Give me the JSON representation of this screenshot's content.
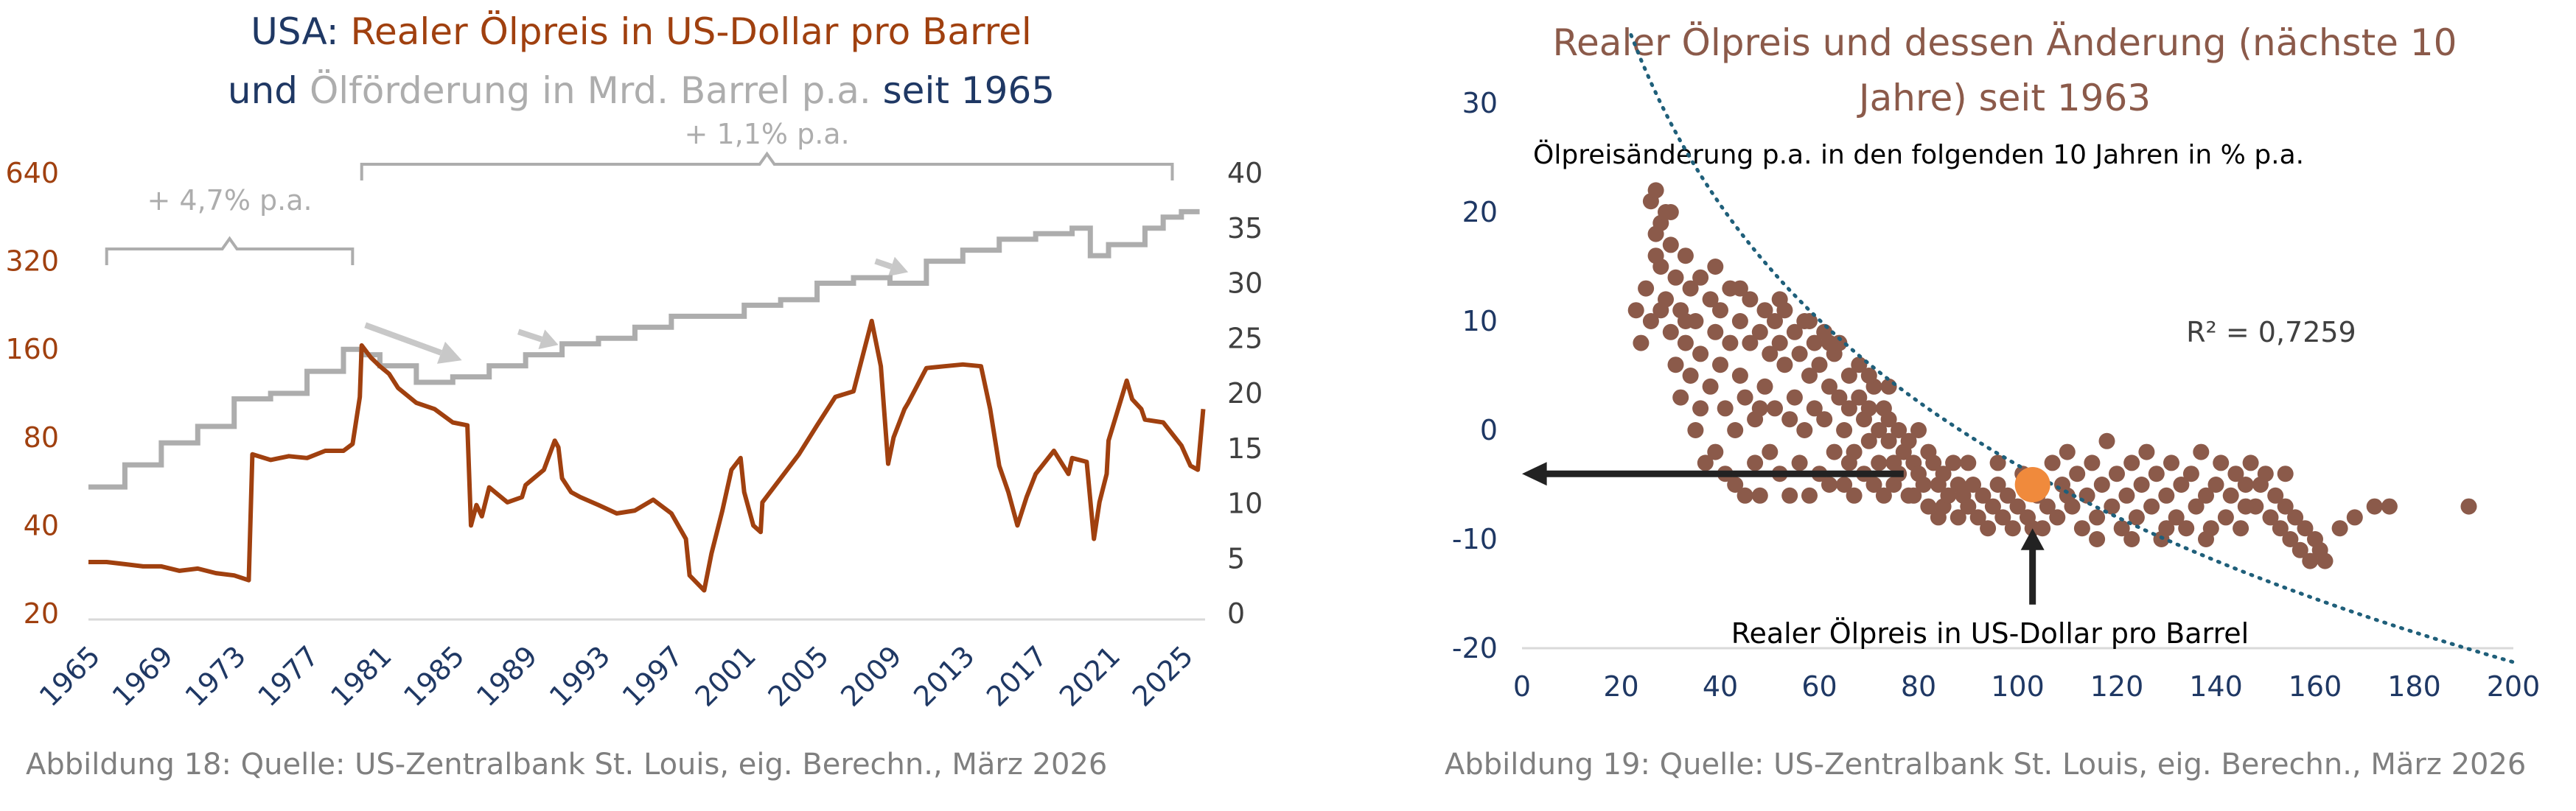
{
  "colors": {
    "navy": "#1f3864",
    "rust": "#a0400f",
    "gray": "#adadad",
    "axis_text": "#1f3864",
    "scatter": "#8b5a4a",
    "highlight": "#f08a3c",
    "trend": "#1f5f7a",
    "arrow": "#222222",
    "caption": "#7f7f7f"
  },
  "left": {
    "title_line1_part1": "USA: ",
    "title_line1_part2": "Realer Ölpreis in US-Dollar pro Barrel",
    "title_line2_part1": "und ",
    "title_line2_part2": "Ölförderung in Mrd. Barrel p.a.",
    "title_line2_part3": " seit 1965",
    "caption": "Abbildung 18: Quelle: US-Zentralbank St. Louis, eig. Berechn., März 2026"
  },
  "right": {
    "caption": "Abbildung 19: Quelle: US-Zentralbank St. Louis, eig. Berechn., März 2026"
  },
  "chart_data": [
    {
      "type": "line",
      "title": "USA: Realer Ölpreis in US-Dollar pro Barrel und Ölförderung in Mrd. Barrel p.a. seit 1965",
      "x_ticks": [
        "1965",
        "1969",
        "1973",
        "1977",
        "1981",
        "1985",
        "1989",
        "1993",
        "1997",
        "2001",
        "2005",
        "2009",
        "2013",
        "2017",
        "2021",
        "2025"
      ],
      "xlim": [
        1965,
        2026.3
      ],
      "y_left": {
        "scale": "log2",
        "ticks": [
          "20",
          "40",
          "80",
          "160",
          "320",
          "640"
        ],
        "range": [
          20,
          640
        ]
      },
      "y_right": {
        "scale": "linear",
        "ticks": [
          "0",
          "5",
          "10",
          "15",
          "20",
          "25",
          "30",
          "35",
          "40"
        ],
        "range": [
          0,
          40
        ]
      },
      "annotations": [
        {
          "text": "+ 4,7% p.a.",
          "from": 1966,
          "to": 1979.5
        },
        {
          "text": "+ 1,1% p.a.",
          "from": 1980,
          "to": 2024.5
        }
      ],
      "series": [
        {
          "name": "Realer Ölpreis in US-Dollar pro Barrel",
          "axis": "left",
          "x": [
            1965,
            1966,
            1967,
            1968,
            1969,
            1970,
            1971,
            1972,
            1973.0,
            1973.8,
            1974.0,
            1975,
            1976,
            1977,
            1978,
            1979.0,
            1979.5,
            1979.9,
            1980.0,
            1980.5,
            1981,
            1981.5,
            1982,
            1983,
            1984,
            1985,
            1985.8,
            1986.0,
            1986.3,
            1986.6,
            1987,
            1988,
            1988.8,
            1989,
            1990,
            1990.6,
            1990.8,
            1991,
            1991.5,
            1992,
            1993,
            1994,
            1995,
            1996,
            1997,
            1997.8,
            1998,
            1998.8,
            1999.2,
            1999.8,
            2000.3,
            2000.8,
            2001,
            2001.5,
            2001.9,
            2002,
            2003,
            2004,
            2005,
            2006,
            2007,
            2008.0,
            2008.5,
            2008.9,
            2009.2,
            2009.8,
            2010,
            2011,
            2012,
            2013,
            2014.0,
            2014.5,
            2015.0,
            2015.5,
            2016.0,
            2016.5,
            2017,
            2018,
            2018.8,
            2019,
            2019.8,
            2020.2,
            2020.5,
            2020.9,
            2021,
            2022.0,
            2022.3,
            2022.8,
            2023,
            2024,
            2025.0,
            2025.5,
            2025.9,
            2026.2
          ],
          "values": [
            30,
            30,
            29.5,
            29,
            29,
            28,
            28.5,
            27.5,
            27,
            26,
            70,
            67,
            69,
            68,
            72,
            72,
            76,
            110,
            165,
            150,
            140,
            132,
            118,
            105,
            100,
            90,
            88,
            40,
            47,
            43,
            54,
            48,
            50,
            55,
            62,
            78,
            74,
            58,
            52,
            50,
            47,
            44,
            45,
            49,
            44,
            36,
            27,
            24,
            32,
            45,
            62,
            68,
            52,
            40,
            38,
            48,
            58,
            70,
            88,
            110,
            115,
            200,
            140,
            65,
            80,
            100,
            105,
            138,
            140,
            142,
            140,
            100,
            64,
            52,
            40,
            50,
            60,
            72,
            60,
            68,
            66,
            36,
            48,
            60,
            78,
            125,
            108,
            100,
            92,
            90,
            75,
            64,
            62,
            100
          ]
        },
        {
          "name": "Ölförderung in Mrd. Barrel p.a.",
          "axis": "right",
          "x": [
            1965,
            1967,
            1969,
            1971,
            1973,
            1975,
            1977,
            1979,
            1980,
            1981,
            1983,
            1985,
            1987,
            1989,
            1991,
            1993,
            1995,
            1997,
            1999,
            2001,
            2003,
            2005,
            2007,
            2009,
            2011,
            2013,
            2015,
            2017,
            2019,
            2020,
            2021,
            2023,
            2024,
            2025,
            2026
          ],
          "values": [
            11.5,
            13.5,
            15.5,
            17.0,
            19.5,
            20.0,
            22.0,
            24.0,
            23.5,
            22.5,
            21.0,
            21.5,
            22.5,
            23.5,
            24.5,
            25.0,
            26.0,
            27.0,
            27.0,
            28.0,
            28.5,
            30.0,
            30.5,
            30.0,
            32.0,
            33.0,
            34.0,
            34.5,
            35.0,
            32.5,
            33.5,
            35.0,
            36.0,
            36.5,
            36.5
          ]
        }
      ]
    },
    {
      "type": "scatter",
      "title": "Realer Ölpreis und dessen Änderung (nächste 10 Jahre) seit 1963",
      "title_line1": "Realer Ölpreis und dessen Änderung (nächste 10",
      "title_line2": "Jahre) seit 1963",
      "xlabel": "Realer Ölpreis in US-Dollar pro Barrel",
      "ylabel": "Ölpreisänderung p.a. in den folgenden 10 Jahren in % p.a.",
      "xlim": [
        0,
        200
      ],
      "ylim": [
        -20,
        30
      ],
      "x_ticks": [
        "0",
        "20",
        "40",
        "60",
        "80",
        "100",
        "120",
        "140",
        "160",
        "180",
        "200"
      ],
      "y_ticks": [
        "-20",
        "-10",
        "0",
        "10",
        "20",
        "30"
      ],
      "r_squared_label": "R² = 0,7259",
      "trendline": {
        "type": "log",
        "a": 8.13,
        "b": -34.0
      },
      "highlight_point": {
        "x": 103,
        "y": -5
      },
      "points": [
        [
          23,
          11
        ],
        [
          24,
          8
        ],
        [
          25,
          13
        ],
        [
          26,
          10
        ],
        [
          26,
          21
        ],
        [
          27,
          22
        ],
        [
          27,
          18
        ],
        [
          28,
          15
        ],
        [
          28,
          19
        ],
        [
          29,
          20
        ],
        [
          29,
          12
        ],
        [
          30,
          17
        ],
        [
          30,
          9
        ],
        [
          31,
          14
        ],
        [
          31,
          6
        ],
        [
          32,
          11
        ],
        [
          32,
          3
        ],
        [
          33,
          16
        ],
        [
          33,
          8
        ],
        [
          34,
          13
        ],
        [
          34,
          5
        ],
        [
          35,
          10
        ],
        [
          35,
          0
        ],
        [
          36,
          14
        ],
        [
          36,
          7
        ],
        [
          37,
          -3
        ],
        [
          38,
          12
        ],
        [
          38,
          4
        ],
        [
          39,
          9
        ],
        [
          39,
          -2
        ],
        [
          40,
          11
        ],
        [
          40,
          6
        ],
        [
          41,
          2
        ],
        [
          41,
          -4
        ],
        [
          42,
          13
        ],
        [
          42,
          8
        ],
        [
          43,
          0
        ],
        [
          43,
          -5
        ],
        [
          44,
          10
        ],
        [
          44,
          5
        ],
        [
          45,
          3
        ],
        [
          45,
          -6
        ],
        [
          46,
          12
        ],
        [
          46,
          8
        ],
        [
          47,
          1
        ],
        [
          47,
          -3
        ],
        [
          48,
          9
        ],
        [
          48,
          -6
        ],
        [
          49,
          11
        ],
        [
          49,
          4
        ],
        [
          50,
          7
        ],
        [
          50,
          -2
        ],
        [
          51,
          10
        ],
        [
          51,
          2
        ],
        [
          52,
          8
        ],
        [
          52,
          -4
        ],
        [
          53,
          6
        ],
        [
          53,
          11
        ],
        [
          54,
          1
        ],
        [
          54,
          -6
        ],
        [
          55,
          9
        ],
        [
          55,
          3
        ],
        [
          56,
          7
        ],
        [
          56,
          -3
        ],
        [
          57,
          10
        ],
        [
          57,
          0
        ],
        [
          58,
          5
        ],
        [
          58,
          -6
        ],
        [
          59,
          8
        ],
        [
          59,
          2
        ],
        [
          60,
          6
        ],
        [
          60,
          -4
        ],
        [
          61,
          9
        ],
        [
          61,
          1
        ],
        [
          62,
          4
        ],
        [
          62,
          -5
        ],
        [
          63,
          7
        ],
        [
          63,
          -2
        ],
        [
          64,
          3
        ],
        [
          64,
          8
        ],
        [
          65,
          0
        ],
        [
          65,
          -5
        ],
        [
          66,
          5
        ],
        [
          66,
          2
        ],
        [
          67,
          -2
        ],
        [
          67,
          -6
        ],
        [
          68,
          3
        ],
        [
          68,
          6
        ],
        [
          69,
          1
        ],
        [
          69,
          -4
        ],
        [
          70,
          2
        ],
        [
          70,
          -1
        ],
        [
          71,
          4
        ],
        [
          71,
          -5
        ],
        [
          72,
          0
        ],
        [
          72,
          -3
        ],
        [
          73,
          2
        ],
        [
          73,
          -6
        ],
        [
          74,
          -1
        ],
        [
          74,
          1
        ],
        [
          75,
          -3
        ],
        [
          75,
          -5
        ],
        [
          76,
          0
        ],
        [
          76,
          -4
        ],
        [
          77,
          -2
        ],
        [
          78,
          -1
        ],
        [
          78,
          -6
        ],
        [
          79,
          -3
        ],
        [
          80,
          -4
        ],
        [
          80,
          0
        ],
        [
          81,
          -5
        ],
        [
          82,
          -2
        ],
        [
          82,
          -7
        ],
        [
          83,
          -3
        ],
        [
          84,
          -5
        ],
        [
          85,
          -4
        ],
        [
          85,
          -7
        ],
        [
          86,
          -6
        ],
        [
          87,
          -3
        ],
        [
          88,
          -5
        ],
        [
          88,
          -8
        ],
        [
          89,
          -6
        ],
        [
          90,
          -7
        ],
        [
          91,
          -5
        ],
        [
          92,
          -8
        ],
        [
          93,
          -6
        ],
        [
          94,
          -9
        ],
        [
          95,
          -7
        ],
        [
          96,
          -5
        ],
        [
          97,
          -8
        ],
        [
          98,
          -6
        ],
        [
          99,
          -9
        ],
        [
          100,
          -7
        ],
        [
          101,
          -4
        ],
        [
          102,
          -8
        ],
        [
          104,
          -6
        ],
        [
          105,
          -9
        ],
        [
          106,
          -7
        ],
        [
          107,
          -3
        ],
        [
          108,
          -8
        ],
        [
          109,
          -5
        ],
        [
          110,
          -2
        ],
        [
          111,
          -7
        ],
        [
          112,
          -4
        ],
        [
          113,
          -9
        ],
        [
          114,
          -6
        ],
        [
          115,
          -3
        ],
        [
          116,
          -8
        ],
        [
          117,
          -5
        ],
        [
          118,
          -1
        ],
        [
          119,
          -7
        ],
        [
          120,
          -4
        ],
        [
          121,
          -9
        ],
        [
          122,
          -6
        ],
        [
          123,
          -3
        ],
        [
          124,
          -8
        ],
        [
          125,
          -5
        ],
        [
          126,
          -2
        ],
        [
          127,
          -7
        ],
        [
          128,
          -4
        ],
        [
          129,
          -10
        ],
        [
          130,
          -6
        ],
        [
          131,
          -3
        ],
        [
          132,
          -8
        ],
        [
          133,
          -5
        ],
        [
          134,
          -9
        ],
        [
          135,
          -4
        ],
        [
          136,
          -7
        ],
        [
          137,
          -2
        ],
        [
          138,
          -6
        ],
        [
          139,
          -9
        ],
        [
          140,
          -5
        ],
        [
          141,
          -3
        ],
        [
          142,
          -8
        ],
        [
          143,
          -6
        ],
        [
          144,
          -4
        ],
        [
          145,
          -9
        ],
        [
          146,
          -5
        ],
        [
          147,
          -3
        ],
        [
          148,
          -7
        ],
        [
          149,
          -5
        ],
        [
          150,
          -4
        ],
        [
          151,
          -8
        ],
        [
          152,
          -6
        ],
        [
          153,
          -9
        ],
        [
          154,
          -7
        ],
        [
          155,
          -10
        ],
        [
          156,
          -8
        ],
        [
          157,
          -11
        ],
        [
          158,
          -9
        ],
        [
          159,
          -12
        ],
        [
          160,
          -10
        ],
        [
          161,
          -11
        ],
        [
          162,
          -12
        ],
        [
          165,
          -9
        ],
        [
          168,
          -8
        ],
        [
          172,
          -7
        ],
        [
          175,
          -7
        ],
        [
          191,
          -7
        ],
        [
          27,
          16
        ],
        [
          28,
          11
        ],
        [
          30,
          20
        ],
        [
          33,
          10
        ],
        [
          36,
          2
        ],
        [
          39,
          15
        ],
        [
          44,
          13
        ],
        [
          48,
          2
        ],
        [
          52,
          12
        ],
        [
          58,
          10
        ],
        [
          62,
          8
        ],
        [
          66,
          -3
        ],
        [
          70,
          5
        ],
        [
          74,
          4
        ],
        [
          79,
          -6
        ],
        [
          84,
          -8
        ],
        [
          90,
          -3
        ],
        [
          96,
          -3
        ],
        [
          103,
          -9
        ],
        [
          110,
          -6
        ],
        [
          116,
          -10
        ],
        [
          123,
          -10
        ],
        [
          130,
          -9
        ],
        [
          138,
          -10
        ],
        [
          146,
          -7
        ],
        [
          154,
          -4
        ]
      ]
    }
  ]
}
